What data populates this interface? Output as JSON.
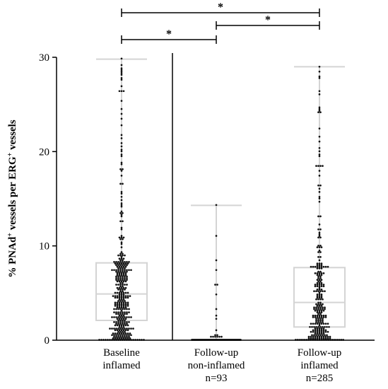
{
  "chart_data": {
    "type": "box-scatter",
    "title": "",
    "ylabel": {
      "parts": [
        {
          "t": "% PNAd",
          "sup": false
        },
        {
          "t": "+",
          "sup": true
        },
        {
          "t": " vessels per ERG",
          "sup": false
        },
        {
          "t": "+",
          "sup": true
        },
        {
          "t": " vessels",
          "sup": false
        }
      ]
    },
    "xlabel": "",
    "ylim": [
      0,
      30
    ],
    "yticks": [
      0,
      10,
      20,
      30
    ],
    "categories": [
      {
        "lines": [
          "Baseline",
          "inflamed"
        ]
      },
      {
        "lines": [
          "Follow-up",
          "non-inflamed",
          "n=93"
        ]
      },
      {
        "lines": [
          "Follow-up",
          "inflamed",
          "n=285"
        ]
      }
    ],
    "series": [
      {
        "min": 0,
        "q1": 2.1,
        "median": 4.9,
        "q3": 8.2,
        "max": 29.8,
        "n": 380,
        "zero_fraction": 0.05,
        "seed": 11
      },
      {
        "min": 0,
        "q1": 0,
        "median": 0,
        "q3": 0,
        "max": 14.3,
        "n": 93,
        "zero_fraction": 0.8,
        "seed": 23
      },
      {
        "min": 0,
        "q1": 1.4,
        "median": 4.0,
        "q3": 7.7,
        "max": 29.0,
        "n": 285,
        "zero_fraction": 0.08,
        "seed": 37
      }
    ],
    "significance": [
      {
        "from": 0,
        "to": 1,
        "label": "*"
      },
      {
        "from": 1,
        "to": 2,
        "label": "*"
      },
      {
        "from": 0,
        "to": 2,
        "label": "*"
      }
    ],
    "colors": {
      "box": "#d4d4d4",
      "point": "#111111",
      "axis": "#000000"
    }
  }
}
